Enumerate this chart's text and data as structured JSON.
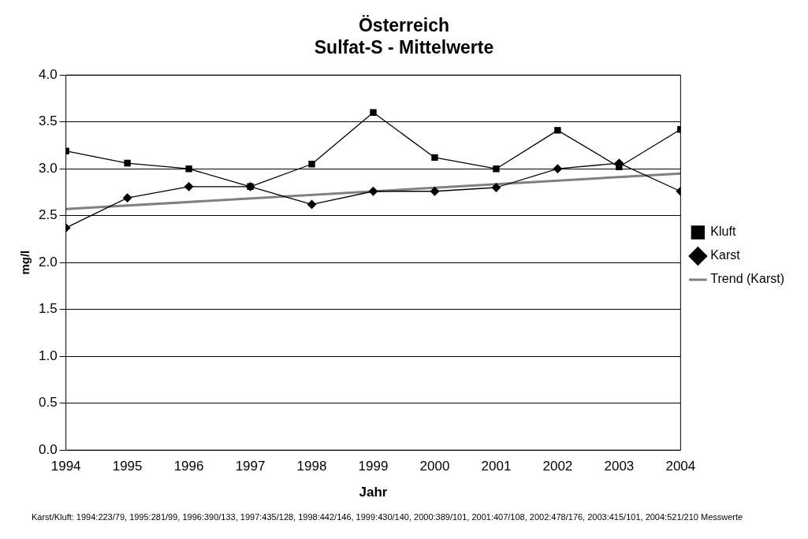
{
  "chart_data": {
    "type": "line",
    "title": "Österreich\nSulfat-S - Mittelwerte",
    "xlabel": "Jahr",
    "ylabel": "mg/l",
    "x": [
      1994,
      1995,
      1996,
      1997,
      1998,
      1999,
      2000,
      2001,
      2002,
      2003,
      2004
    ],
    "series": [
      {
        "name": "Karst",
        "color": "#000000",
        "marker": "diamond",
        "values": [
          2.37,
          2.69,
          2.81,
          2.81,
          2.62,
          2.76,
          2.76,
          2.8,
          3.0,
          3.06,
          2.76
        ]
      },
      {
        "name": "Kluft",
        "color": "#000000",
        "marker": "square",
        "values": [
          3.19,
          3.06,
          3.0,
          2.81,
          3.05,
          3.6,
          3.12,
          3.0,
          3.41,
          3.02,
          3.42
        ]
      },
      {
        "name": "Trend (Karst)",
        "color": "#808080",
        "marker": "none",
        "x": [
          1994,
          2004
        ],
        "values": [
          2.57,
          2.95
        ]
      }
    ],
    "xlim": [
      1994,
      2004
    ],
    "xticks": [
      1994,
      1995,
      1996,
      1997,
      1998,
      1999,
      2000,
      2001,
      2002,
      2003,
      2004
    ],
    "ylim": [
      0,
      4
    ],
    "yticks": [
      {
        "value": 0,
        "label": "0.0"
      },
      {
        "value": 0.5,
        "label": "0.5"
      },
      {
        "value": 1,
        "label": "1.0"
      },
      {
        "value": 1.5,
        "label": "1.5"
      },
      {
        "value": 2,
        "label": "2.0"
      },
      {
        "value": 2.5,
        "label": "2.5"
      },
      {
        "value": 3,
        "label": "3.0"
      },
      {
        "value": 3.5,
        "label": "3.5"
      },
      {
        "value": 4,
        "label": "4.0"
      }
    ],
    "grid": "y",
    "legend": "right",
    "annotations": [
      "Karst/Kluft: 1994:223/79, 1995:281/99, 1996:390/133, 1997:435/128, 1998:442/146, 1999:430/140, 2000:389/101, 2001:407/108, 2002:478/176, 2003:415/101, 2004:521/210 Messwerte"
    ]
  }
}
